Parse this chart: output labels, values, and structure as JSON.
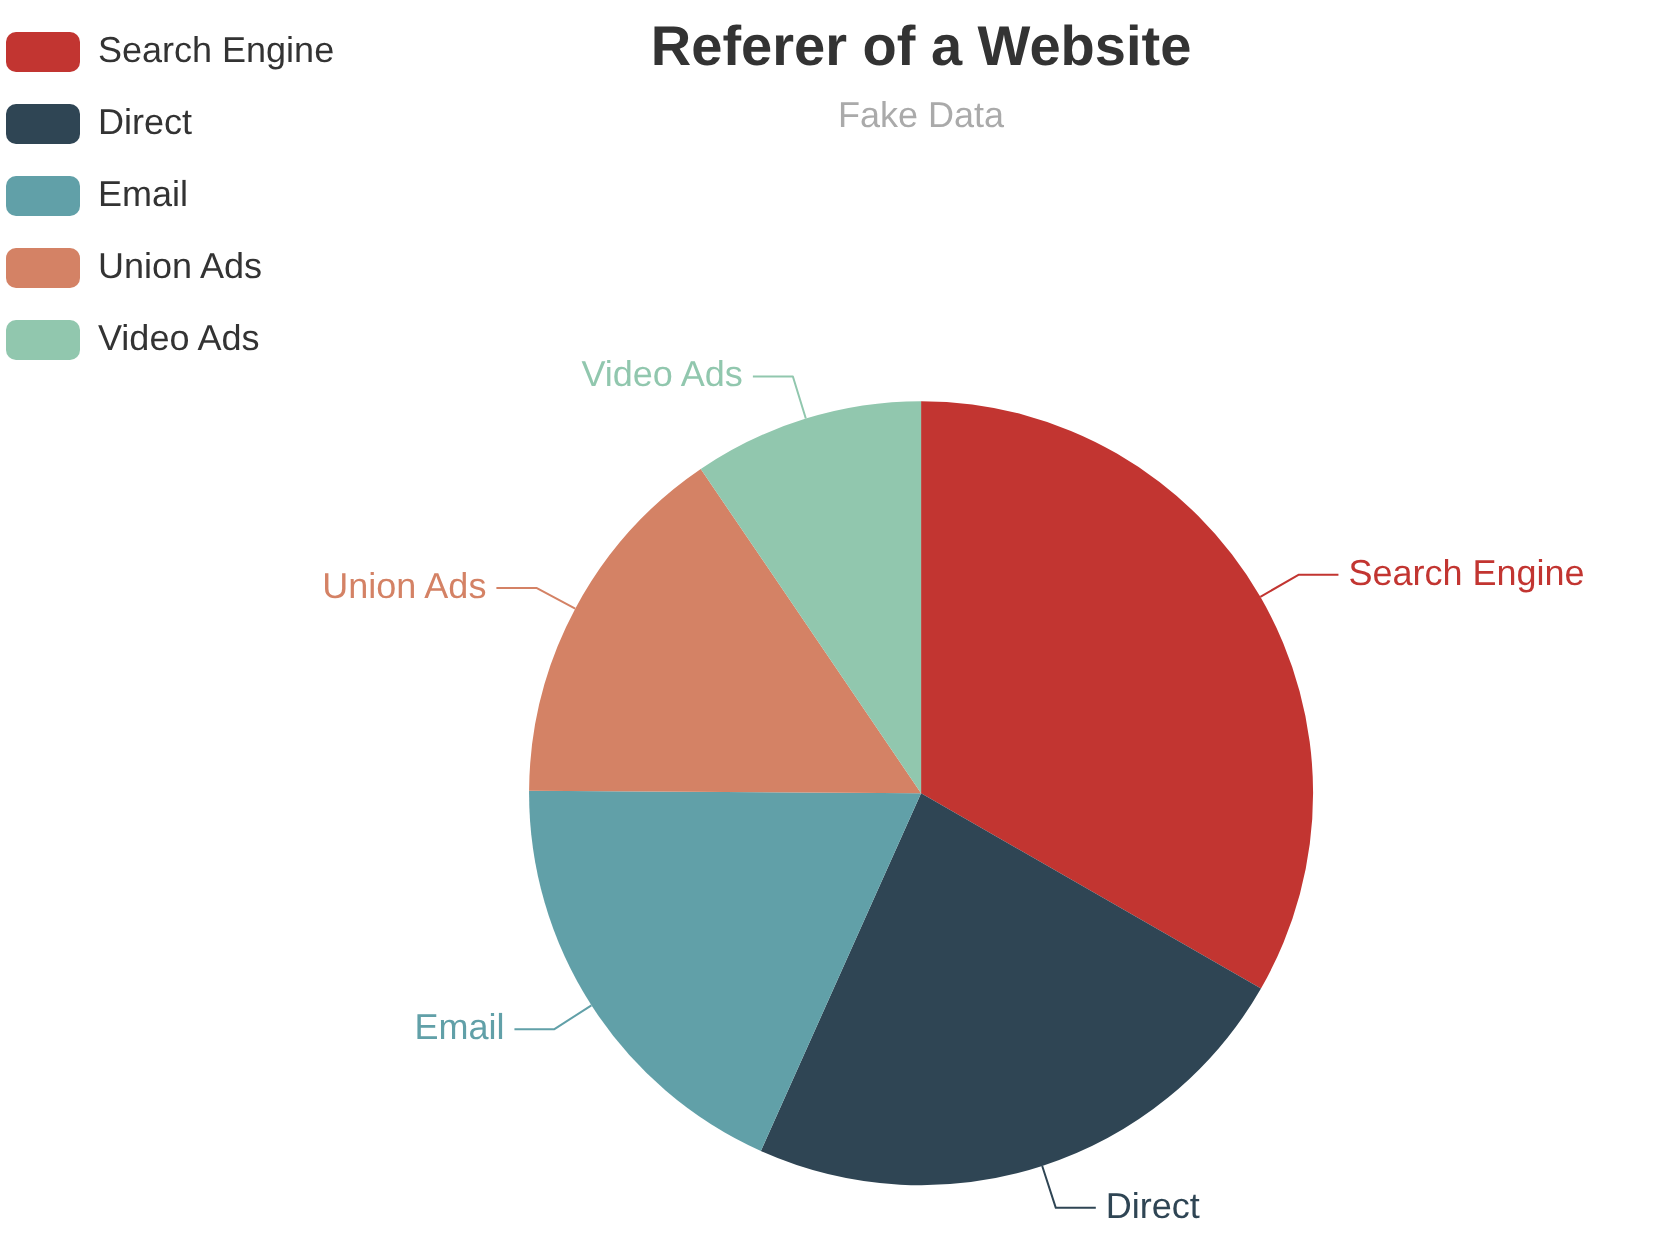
{
  "chart_data": {
    "type": "pie",
    "title": "Referer of a Website",
    "subtitle": "Fake Data",
    "categories": [
      "Search Engine",
      "Direct",
      "Email",
      "Union Ads",
      "Video Ads"
    ],
    "values": [
      33.3,
      23.4,
      18.4,
      15.4,
      9.5
    ],
    "colors": [
      "#c23531",
      "#2f4554",
      "#61a0a8",
      "#d48265",
      "#91c7ae"
    ],
    "legend": "top left"
  }
}
